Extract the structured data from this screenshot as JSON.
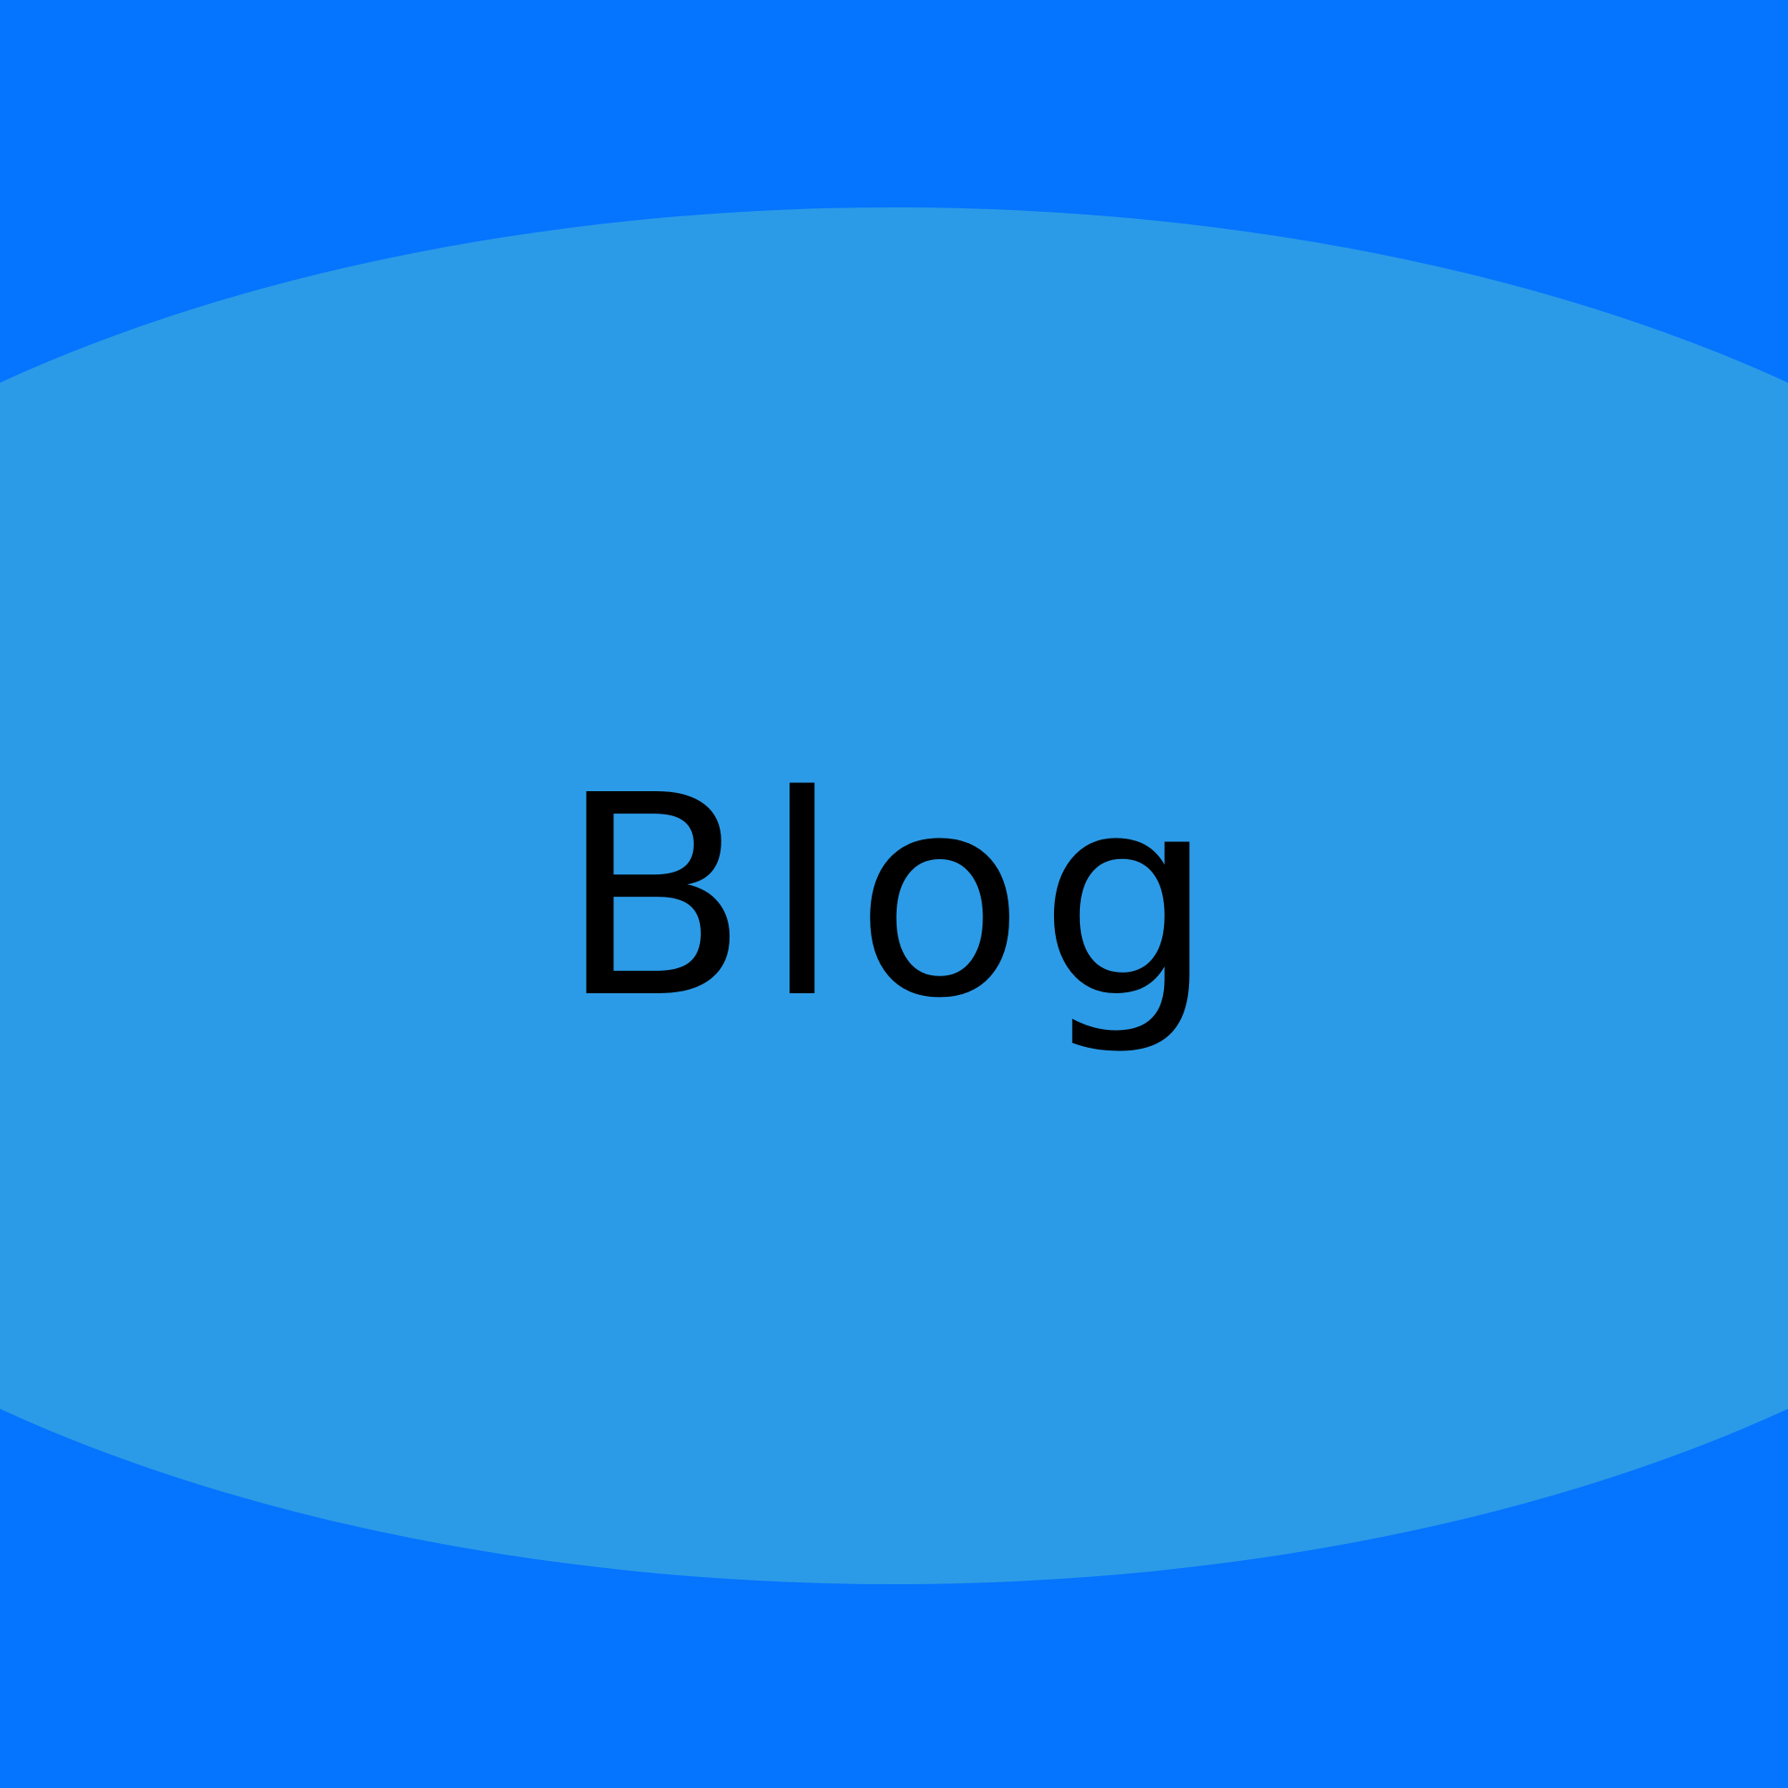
{
  "title": "Blog",
  "colors": {
    "background": "#0574FF",
    "ellipse": "#2C9BE7",
    "text": "#000000"
  }
}
